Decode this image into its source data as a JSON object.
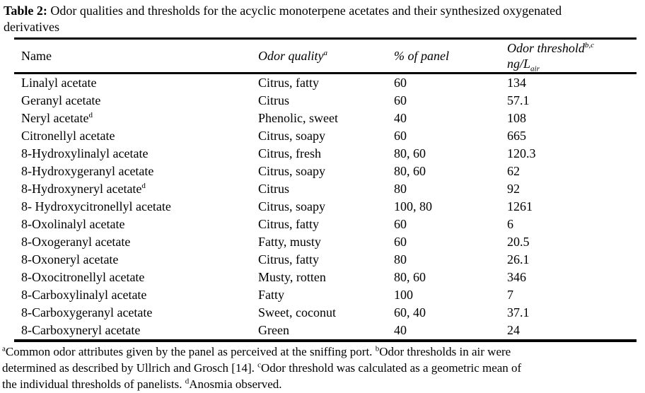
{
  "title": {
    "label": "Table 2:",
    "rest": " Odor qualities and thresholds for the acyclic monoterpene acetates and their synthesized oxygenated",
    "line2": "derivatives"
  },
  "table": {
    "columns": [
      {
        "label": "Name",
        "sup": ""
      },
      {
        "label": "Odor quality",
        "sup": "a"
      },
      {
        "label": "% of panel",
        "sup": ""
      },
      {
        "label": "Odor threshold",
        "sup": "b,c",
        "unit": "ng/L",
        "unit_sub": "air"
      }
    ],
    "rows": [
      {
        "name": "Linalyl acetate",
        "sup": "",
        "quality": "Citrus, fatty",
        "panel": "60",
        "threshold": "134"
      },
      {
        "name": "Geranyl acetate",
        "sup": "",
        "quality": "Citrus",
        "panel": "60",
        "threshold": "57.1"
      },
      {
        "name": "Neryl acetate",
        "sup": "d",
        "quality": "Phenolic, sweet",
        "panel": "40",
        "threshold": "108"
      },
      {
        "name": "Citronellyl acetate",
        "sup": "",
        "quality": "Citrus, soapy",
        "panel": "60",
        "threshold": "665"
      },
      {
        "name": "8-Hydroxylinalyl acetate",
        "sup": "",
        "quality": "Citrus, fresh",
        "panel": "80, 60",
        "threshold": "120.3"
      },
      {
        "name": "8-Hydroxygeranyl acetate",
        "sup": "",
        "quality": "Citrus, soapy",
        "panel": "80, 60",
        "threshold": "62"
      },
      {
        "name": "8-Hydroxyneryl acetate",
        "sup": "d",
        "quality": "Citrus",
        "panel": "80",
        "threshold": "92"
      },
      {
        "name": "8- Hydroxycitronellyl acetate",
        "sup": "",
        "quality": "Citrus, soapy",
        "panel": "100, 80",
        "threshold": "1261"
      },
      {
        "name": "8-Oxolinalyl acetate",
        "sup": "",
        "quality": "Citrus, fatty",
        "panel": "60",
        "threshold": "6"
      },
      {
        "name": "8-Oxogeranyl acetate",
        "sup": "",
        "quality": "Fatty, musty",
        "panel": "60",
        "threshold": "20.5"
      },
      {
        "name": "8-Oxoneryl acetate",
        "sup": "",
        "quality": "Citrus, fatty",
        "panel": "80",
        "threshold": "26.1"
      },
      {
        "name": "8-Oxocitronellyl acetate",
        "sup": "",
        "quality": "Musty, rotten",
        "panel": "80, 60",
        "threshold": "346"
      },
      {
        "name": "8-Carboxylinalyl acetate",
        "sup": "",
        "quality": "Fatty",
        "panel": "100",
        "threshold": "7"
      },
      {
        "name": "8-Carboxygeranyl acetate",
        "sup": "",
        "quality": "Sweet, coconut",
        "panel": "60, 40",
        "threshold": "37.1"
      },
      {
        "name": "8-Carboxyneryl acetate",
        "sup": "",
        "quality": "Green",
        "panel": "40",
        "threshold": "24"
      }
    ]
  },
  "footnotes": {
    "lines": [
      [
        {
          "sup": "a",
          "text": "Common odor attributes given by the panel as perceived at the sniffing port. "
        },
        {
          "sup": "b",
          "text": "Odor thresholds in air were"
        }
      ],
      [
        {
          "sup": "",
          "text": "determined as described by Ullrich and Grosch [14]. "
        },
        {
          "sup": "c",
          "text": "Odor threshold was calculated as a geometric mean of"
        }
      ],
      [
        {
          "sup": "",
          "text": "the individual thresholds of panelists. "
        },
        {
          "sup": "d",
          "text": "Anosmia observed."
        }
      ]
    ]
  }
}
